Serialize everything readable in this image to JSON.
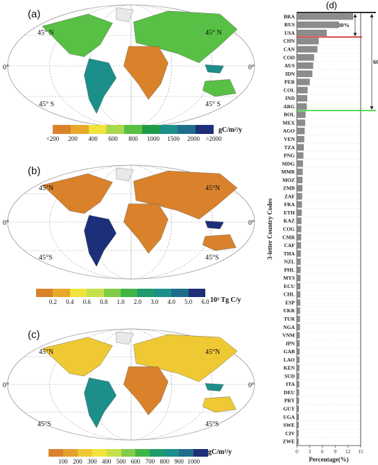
{
  "panels": [
    {
      "id": "a",
      "label": "(a)",
      "lat_labels": {
        "n_left": "45° N",
        "n_right": "45° N",
        "eq": "0°",
        "eq_right": "0°",
        "s_left": "45° S",
        "s_right": "45° S"
      },
      "colorbar": {
        "colors": [
          "#d9822b",
          "#e8a92b",
          "#f1e33a",
          "#a9d84b",
          "#58c044",
          "#1e9b49",
          "#1c8f8a",
          "#1f6d8c",
          "#1c2f78"
        ],
        "ticks": [
          "<200",
          "200",
          "400",
          "600",
          "800",
          "1000",
          "1500",
          "2000",
          ">2000"
        ],
        "unit": "gC/m²/y"
      }
    },
    {
      "id": "b",
      "label": "(b)",
      "lat_labels": {
        "n_left": "45°N",
        "n_right": "45°N",
        "eq": "0°",
        "eq_right": "0°",
        "s_left": "45°S",
        "s_right": "45°S"
      },
      "colorbar": {
        "colors": [
          "#d9822b",
          "#e8a92b",
          "#f1e33a",
          "#c5e04a",
          "#82cc47",
          "#3fb548",
          "#1e9b6a",
          "#1c8f8a",
          "#1f6d8c",
          "#1c2f78"
        ],
        "ticks": [
          "0.2",
          "0.4",
          "0.6",
          "0.8",
          "1.0",
          "2.0",
          "3.0",
          "4.0",
          "5.0",
          "6.0"
        ],
        "unit": "10³ Tg C/y"
      }
    },
    {
      "id": "c",
      "label": "(c)",
      "lat_labels": {
        "n_left": "45°N",
        "n_right": "45°N",
        "eq": "0°",
        "eq_right": "0°",
        "s_left": "45°S",
        "s_right": "45°S"
      },
      "colorbar": {
        "colors": [
          "#d9822b",
          "#e5a02c",
          "#efc933",
          "#f1e33a",
          "#c5e04a",
          "#82cc47",
          "#3fb548",
          "#1e9b6a",
          "#1c8f8a",
          "#1f6d8c",
          "#1c2f78"
        ],
        "ticks": [
          "100",
          "200",
          "300",
          "400",
          "500",
          "600",
          "700",
          "800",
          "900",
          "1000"
        ],
        "unit": "gC/m²/y"
      }
    }
  ],
  "map_colors": {
    "land_a": "#58c044",
    "land_b": "#d9822b",
    "land_c": "#efc933",
    "outline": "#888888",
    "grid": "#999999"
  },
  "chart_data": {
    "type": "bar",
    "orientation": "horizontal",
    "panel_label": "(d)",
    "ylabel": "3-letter Country Codes",
    "xlabel": "Percentage(%)",
    "xlim": [
      0,
      15
    ],
    "xticks": [
      "0",
      "3",
      "6",
      "9",
      "12",
      "15"
    ],
    "categories": [
      "BRA",
      "RUS",
      "USA",
      "CHN",
      "CAN",
      "COD",
      "AUS",
      "IDN",
      "PER",
      "COL",
      "IND",
      "ARG",
      "BOL",
      "MEX",
      "AGO",
      "VEN",
      "TZA",
      "PNG",
      "MDG",
      "MMR",
      "MOZ",
      "ZMB",
      "ZAF",
      "FRA",
      "ETH",
      "KAZ",
      "COG",
      "CMR",
      "CAF",
      "THA",
      "NZL",
      "PHL",
      "MYS",
      "ECU",
      "CHL",
      "ESP",
      "UKR",
      "TUR",
      "NGA",
      "VNM",
      "JPN",
      "GAB",
      "LAO",
      "KEN",
      "SUD",
      "ITA",
      "DEU",
      "PRY",
      "GUY",
      "UGA",
      "SWE",
      "CIV",
      "ZWE"
    ],
    "values": [
      13.2,
      9.8,
      7.0,
      5.1,
      4.8,
      4.0,
      3.8,
      3.6,
      3.0,
      2.5,
      2.4,
      2.3,
      2.0,
      1.9,
      1.8,
      1.7,
      1.6,
      1.5,
      1.4,
      1.35,
      1.3,
      1.25,
      1.2,
      1.15,
      1.1,
      1.05,
      1.0,
      0.98,
      0.95,
      0.9,
      0.88,
      0.85,
      0.82,
      0.8,
      0.78,
      0.75,
      0.72,
      0.7,
      0.68,
      0.65,
      0.62,
      0.6,
      0.58,
      0.56,
      0.54,
      0.52,
      0.5,
      0.48,
      0.46,
      0.44,
      0.42,
      0.4,
      0.38
    ],
    "bar_color": "#8c8c8c",
    "annotations": [
      {
        "text": "30%",
        "from_index": 0,
        "to_index": 2,
        "line_color": "#cc1f1f"
      },
      {
        "text": "60%",
        "from_index": 0,
        "to_index": 11,
        "line_color": "#2fcf2f"
      }
    ]
  }
}
